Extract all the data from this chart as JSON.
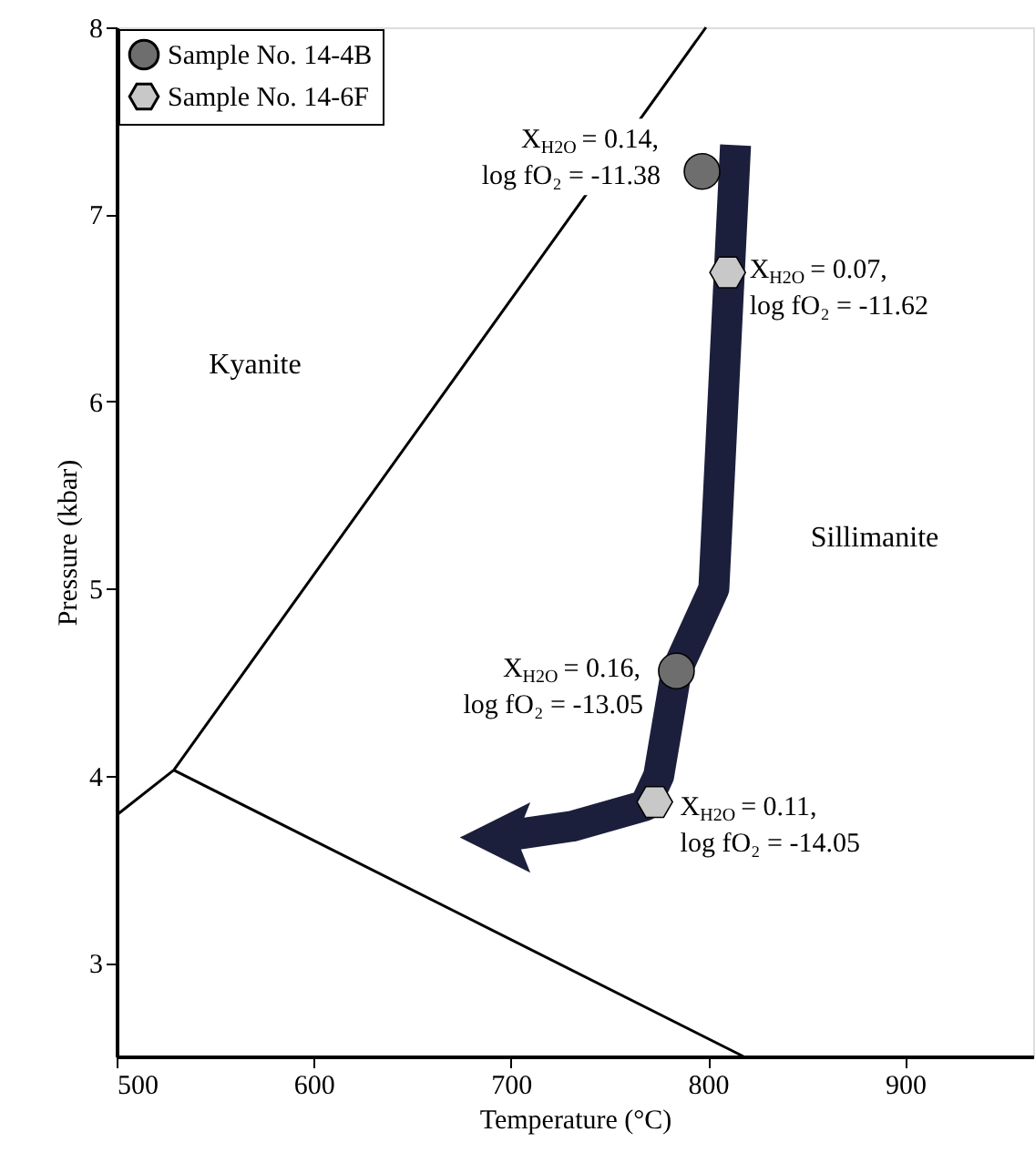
{
  "chart_data": {
    "type": "scatter",
    "xlabel": "Temperature (°C)",
    "ylabel": "Pressure (kbar)",
    "xlim": [
      500,
      965
    ],
    "ylim": [
      2.5,
      8
    ],
    "xticks": [
      500,
      600,
      700,
      800,
      900
    ],
    "yticks": [
      3,
      4,
      5,
      6,
      7,
      8
    ],
    "grid": false,
    "legend": "top left",
    "series": [
      {
        "name": "Sample No. 14-4B",
        "color": "#6e6e6e",
        "x": [
          797,
          784
        ],
        "values": [
          7.23,
          4.56
        ]
      },
      {
        "name": "Sample No. 14-6F",
        "color": "#c8c8c8",
        "x": [
          810,
          773
        ],
        "values": [
          6.69,
          3.86
        ]
      },
      {
        "type": "line",
        "color": "#000000",
        "x": [
          500,
          529,
          799
        ],
        "values": [
          3.79,
          4.03,
          8
        ]
      },
      {
        "type": "line",
        "color": "#000000",
        "x": [
          529,
          818
        ],
        "values": [
          4.03,
          2.5
        ]
      },
      {
        "type": "line",
        "color": "#1b1f3b",
        "x": [
          814,
          803,
          784,
          775,
          768,
          731,
          692
        ],
        "values": [
          7.37,
          5.0,
          4.56,
          4.0,
          3.84,
          3.73,
          3.67
        ]
      }
    ],
    "annotations": [
      {
        "text": "X$_{H2O}$ = 0.14,\nlog fO₂ = -11.38",
        "x": 797,
        "y": 7.23
      },
      {
        "text": "X$_{H2O}$ = 0.07,\nlog fO₂ = -11.62",
        "x": 810,
        "y": 6.69
      },
      {
        "text": "X$_{H2O}$ = 0.16,\nlog fO₂ = -13.05",
        "x": 784,
        "y": 4.56
      },
      {
        "text": "X$_{H2O}$ = 0.11,\nlog fO₂ = -14.05",
        "x": 773,
        "y": 3.86
      },
      "Kyanite",
      "Sillimanite"
    ]
  }
}
